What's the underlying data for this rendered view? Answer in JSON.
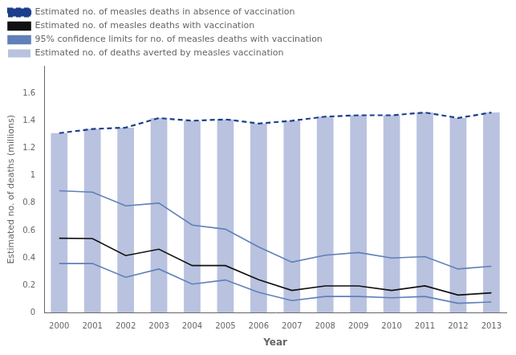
{
  "chart_data": {
    "type": "bar",
    "x": [
      2000,
      2001,
      2002,
      2003,
      2004,
      2005,
      2006,
      2007,
      2008,
      2009,
      2010,
      2011,
      2012,
      2013
    ],
    "xlim": [
      1999.55,
      2013.45
    ],
    "xticks": [
      2000,
      2001,
      2002,
      2003,
      2004,
      2005,
      2006,
      2007,
      2008,
      2009,
      2010,
      2011,
      2012,
      2013
    ],
    "ylim": [
      0,
      1.8
    ],
    "yticks": [
      0,
      0.2,
      0.4,
      0.6,
      0.8,
      1,
      1.2,
      1.4,
      1.6
    ],
    "xlabel": "Year",
    "ylabel": "Estimated no. of deaths (millions)",
    "grid": false,
    "legend": "upper left",
    "series": [
      {
        "name": "Estimated no. of measles deaths in absence of vaccination",
        "type": "line",
        "line_style": "dashed",
        "color": "#1B3F8C",
        "values": [
          1.31,
          1.34,
          1.35,
          1.42,
          1.4,
          1.41,
          1.38,
          1.4,
          1.43,
          1.44,
          1.44,
          1.46,
          1.42,
          1.46
        ]
      },
      {
        "name": "Estimated no. of measles deaths with vaccination",
        "type": "line",
        "line_style": "solid",
        "color": "#111111",
        "values": [
          0.544,
          0.542,
          0.418,
          0.464,
          0.345,
          0.345,
          0.242,
          0.164,
          0.197,
          0.197,
          0.164,
          0.197,
          0.13,
          0.146
        ]
      },
      {
        "name": "95% confidence limits for no. of measles deaths with vaccination",
        "type": "line",
        "line_style": "solid",
        "color": "#6080B8",
        "upper": [
          0.89,
          0.88,
          0.78,
          0.8,
          0.64,
          0.61,
          0.48,
          0.37,
          0.42,
          0.44,
          0.4,
          0.41,
          0.32,
          0.34
        ],
        "lower": [
          0.36,
          0.36,
          0.26,
          0.32,
          0.21,
          0.24,
          0.15,
          0.09,
          0.12,
          0.12,
          0.11,
          0.12,
          0.07,
          0.08
        ]
      },
      {
        "name": "Estimated no. of deaths averted by measles vaccination",
        "type": "bar",
        "color": "#8090C4",
        "values": [
          1.31,
          1.34,
          1.35,
          1.42,
          1.4,
          1.41,
          1.38,
          1.4,
          1.43,
          1.44,
          1.44,
          1.46,
          1.42,
          1.46
        ]
      }
    ]
  }
}
